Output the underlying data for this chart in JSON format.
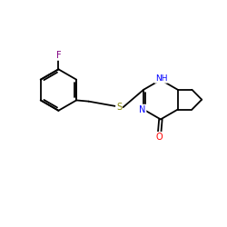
{
  "background_color": "#ffffff",
  "bond_color": "#000000",
  "atom_colors": {
    "F": "#800080",
    "S": "#808000",
    "N": "#0000FF",
    "O": "#FF0000"
  },
  "figsize": [
    2.5,
    2.5
  ],
  "dpi": 100,
  "bond_lw": 1.3
}
